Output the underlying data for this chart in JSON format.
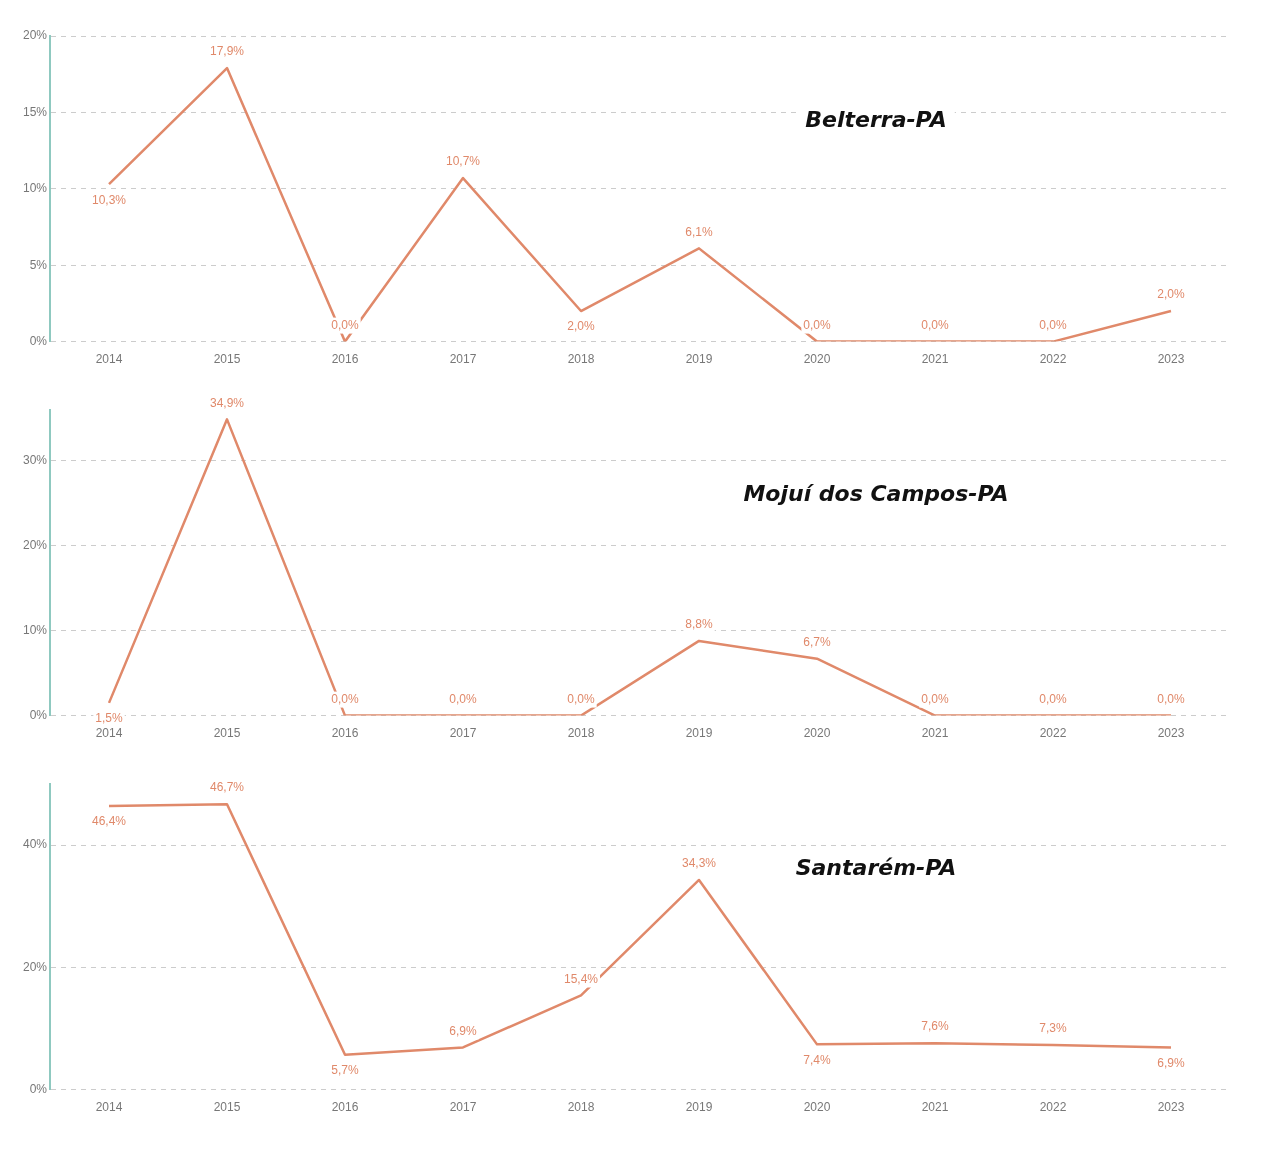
{
  "chart_data": [
    {
      "type": "line",
      "title": "Belterra-PA",
      "categories": [
        "2014",
        "2015",
        "2016",
        "2017",
        "2018",
        "2019",
        "2020",
        "2021",
        "2022",
        "2023"
      ],
      "series": [
        {
          "color": "#e0896a",
          "values": [
            10.3,
            17.9,
            0.0,
            10.7,
            2.0,
            6.1,
            0.0,
            0.0,
            0.0,
            2.0
          ],
          "value_labels": [
            "10,3%",
            "17,9%",
            "0,0%",
            "10,7%",
            "2,0%",
            "6,1%",
            "0,0%",
            "0,0%",
            "0,0%",
            "2,0%"
          ]
        }
      ],
      "ylim": [
        0,
        20
      ],
      "yticks": [
        {
          "value": 0,
          "label": "0%"
        },
        {
          "value": 5,
          "label": "5%"
        },
        {
          "value": 10,
          "label": "10%"
        },
        {
          "value": 15,
          "label": "15%"
        },
        {
          "value": 20,
          "label": "20%"
        }
      ],
      "grid": "y",
      "legend": false,
      "marker": "none",
      "line_style": "solid"
    },
    {
      "type": "line",
      "title": "Mojuí dos Campos-PA",
      "categories": [
        "2014",
        "2015",
        "2016",
        "2017",
        "2018",
        "2019",
        "2020",
        "2021",
        "2022",
        "2023"
      ],
      "series": [
        {
          "color": "#e0896a",
          "values": [
            1.5,
            34.9,
            0.0,
            0.0,
            0.0,
            8.8,
            6.7,
            0.0,
            0.0,
            0.0
          ],
          "value_labels": [
            "1,5%",
            "34,9%",
            "0,0%",
            "0,0%",
            "0,0%",
            "8,8%",
            "6,7%",
            "0,0%",
            "0,0%",
            "0,0%"
          ]
        }
      ],
      "ylim": [
        0,
        36
      ],
      "yticks": [
        {
          "value": 0,
          "label": "0%"
        },
        {
          "value": 10,
          "label": "10%"
        },
        {
          "value": 20,
          "label": "20%"
        },
        {
          "value": 30,
          "label": "30%"
        }
      ],
      "grid": "y",
      "legend": false,
      "marker": "none",
      "line_style": "solid"
    },
    {
      "type": "line",
      "title": "Santarém-PA",
      "categories": [
        "2014",
        "2015",
        "2016",
        "2017",
        "2018",
        "2019",
        "2020",
        "2021",
        "2022",
        "2023"
      ],
      "series": [
        {
          "color": "#e0896a",
          "values": [
            46.4,
            46.7,
            5.7,
            6.9,
            15.4,
            34.3,
            7.4,
            7.6,
            7.3,
            6.9
          ],
          "value_labels": [
            "46,4%",
            "46,7%",
            "5,7%",
            "6,9%",
            "15,4%",
            "34,3%",
            "7,4%",
            "7,6%",
            "7,3%",
            "6,9%"
          ]
        }
      ],
      "ylim": [
        0,
        50
      ],
      "yticks": [
        {
          "value": 0,
          "label": "0%"
        },
        {
          "value": 20,
          "label": "20%"
        },
        {
          "value": 40,
          "label": "40%"
        }
      ],
      "grid": "y",
      "legend": false,
      "marker": "none",
      "line_style": "solid"
    }
  ]
}
